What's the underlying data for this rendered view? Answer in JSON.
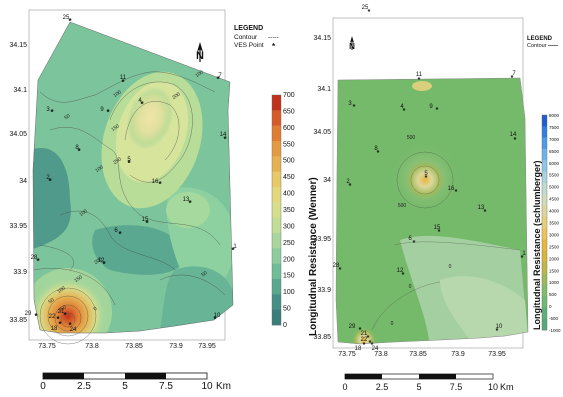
{
  "left_map": {
    "legend": {
      "title": "LEGEND",
      "contour": "Contour",
      "ves": "VES Point",
      "contour_sym": "-----",
      "ves_sym": "*"
    },
    "north": "N",
    "colorbar": {
      "title": "Longitudnal Resistance (Wenner)",
      "ticks": [
        "700",
        "650",
        "600",
        "550",
        "500",
        "450",
        "400",
        "350",
        "300",
        "250",
        "200",
        "150",
        "100",
        "50",
        "0"
      ],
      "colors": [
        "#c0321c",
        "#d75a2a",
        "#e07d35",
        "#e49a42",
        "#e6b152",
        "#e8c867",
        "#e3d87c",
        "#d6de8c",
        "#c2dd96",
        "#a8d69c",
        "#8dcc9d",
        "#6fbc99",
        "#58a88f",
        "#458f84",
        "#3a7d7b"
      ]
    },
    "y_ticks": [
      "34.15",
      "34.1",
      "34.05",
      "34",
      "33.95",
      "33.9",
      "33.85"
    ],
    "x_ticks": [
      "73.75",
      "73.8",
      "73.85",
      "73.9",
      "73.95"
    ],
    "contour_labels": [
      "100",
      "150",
      "200",
      "250",
      "100",
      "50",
      "100",
      "200",
      "150",
      "100",
      "50",
      "150",
      "100",
      "50",
      "0"
    ],
    "points": [
      "25",
      "11",
      "7",
      "4",
      "3",
      "9",
      "14",
      "8",
      "5",
      "2",
      "16",
      "13",
      "15",
      "6",
      "1",
      "28",
      "12",
      "21",
      "29",
      "22",
      "18",
      "24",
      "10"
    ],
    "scalebar": {
      "ticks": [
        "0",
        "2.5",
        "5",
        "7.5",
        "10"
      ],
      "unit": "Km"
    }
  },
  "right_map": {
    "legend": {
      "title": "LEGEND",
      "contour": "Contour"
    },
    "north": "N",
    "colorbar": {
      "title": "Longitudnal Resistance (schlumberger)",
      "ticks": [
        "8000",
        "7500",
        "7000",
        "6500",
        "6000",
        "5500",
        "5000",
        "4500",
        "4000",
        "3500",
        "3000",
        "2500",
        "2000",
        "1500",
        "1000",
        "500",
        "0",
        "-500",
        "-1000"
      ],
      "colors": [
        "#1d5fd0",
        "#2f7fe0",
        "#4a9be8",
        "#6bb4ea",
        "#8dc6e6",
        "#a9d3df",
        "#c0dccf",
        "#cfdcb9",
        "#dcd79b",
        "#e6cf77",
        "#ecc458",
        "#e9b73e",
        "#d9b43a",
        "#bfb646",
        "#9fba5a",
        "#82bd6a",
        "#6dbb72",
        "#5fb276",
        "#55a878"
      ]
    },
    "y_ticks": [
      "34.15",
      "34.1",
      "34.05",
      "34",
      "33.95",
      "33.9",
      "33.85"
    ],
    "x_ticks": [
      "73.75",
      "73.8",
      "73.85",
      "73.9",
      "73.95"
    ],
    "contour_labels": [
      "500",
      "500",
      "0",
      "0",
      "0"
    ],
    "points": [
      "25",
      "11",
      "7",
      "4",
      "3",
      "9",
      "14",
      "8",
      "5",
      "2",
      "16",
      "13",
      "15",
      "6",
      "1",
      "28",
      "12",
      "21",
      "29",
      "22",
      "18",
      "24",
      "10"
    ],
    "scalebar": {
      "ticks": [
        "0",
        "2.5",
        "5",
        "7.5",
        "10"
      ],
      "unit": "Km"
    }
  }
}
